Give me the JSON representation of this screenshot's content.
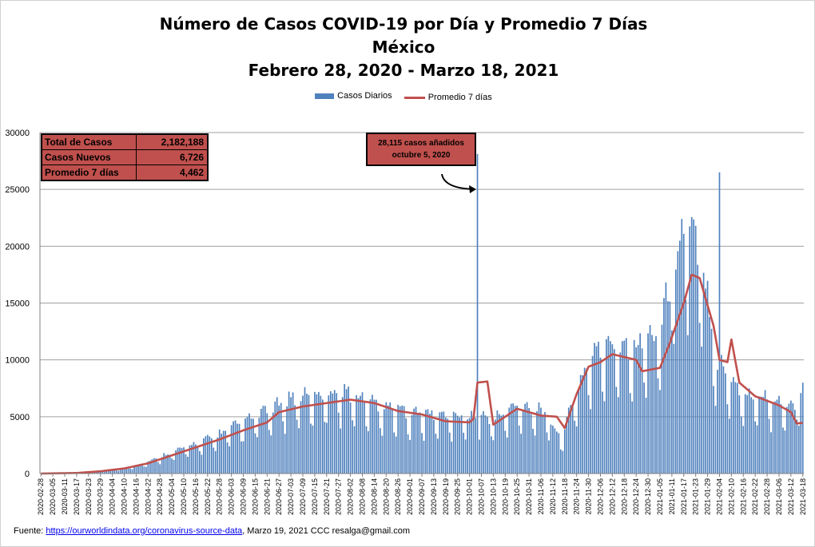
{
  "titles": {
    "line1": "Número de  Casos  COVID-19 por Día y Promedio 7 Días",
    "line2": "México",
    "line3": "Febrero 28, 2020 - Marzo 18, 2021"
  },
  "legend": {
    "bars": "Casos Diarios",
    "line": "Promedio 7 días"
  },
  "colors": {
    "bars": "#4f81bd",
    "line": "#c0504d",
    "box": "#c0504d",
    "grid": "#a0a0a0"
  },
  "stats": [
    {
      "label": "Total de Casos",
      "value": "2,182,188"
    },
    {
      "label": "Casos Nuevos",
      "value": "6,726"
    },
    {
      "label": "Promedio 7 días",
      "value": "4,462"
    }
  ],
  "annotation": {
    "line1": "28,115 casos  añadidos",
    "line2": "octubre  5, 2020"
  },
  "footer": {
    "prefix": "Fuente:",
    "link": "https://ourworldindata.org/coronavirus-source-data",
    "suffix": ",  Marzo 19, 2021    CCC   resalga@gmail.com"
  },
  "chart_data": {
    "type": "bar",
    "title": "Número de  Casos  COVID-19 por Día y Promedio 7 Días",
    "x_start": "2020-02-28",
    "x_end": "2021-03-18",
    "ylim": [
      0,
      30000
    ],
    "y_ticks": [
      0,
      5000,
      10000,
      15000,
      20000,
      25000,
      30000
    ],
    "x_tick_labels": [
      "2020-02-28",
      "2020-03-05",
      "2020-03-11",
      "2020-03-17",
      "2020-03-23",
      "2020-03-29",
      "2020-04-04",
      "2020-04-10",
      "2020-04-16",
      "2020-04-22",
      "2020-04-28",
      "2020-05-04",
      "2020-05-10",
      "2020-05-16",
      "2020-05-22",
      "2020-05-28",
      "2020-06-03",
      "2020-06-09",
      "2020-06-15",
      "2020-06-21",
      "2020-06-27",
      "2020-07-03",
      "2020-07-09",
      "2020-07-15",
      "2020-07-21",
      "2020-07-27",
      "2020-08-02",
      "2020-08-08",
      "2020-08-14",
      "2020-08-20",
      "2020-08-26",
      "2020-09-01",
      "2020-09-07",
      "2020-09-13",
      "2020-09-19",
      "2020-09-25",
      "2020-10-01",
      "2020-10-07",
      "2020-10-13",
      "2020-10-19",
      "2020-10-25",
      "2020-10-31",
      "2020-11-06",
      "2020-11-12",
      "2020-11-18",
      "2020-11-24",
      "2020-11-30",
      "2020-12-06",
      "2020-12-12",
      "2020-12-18",
      "2020-12-24",
      "2020-12-30",
      "2021-01-05",
      "2021-01-11",
      "2021-01-17",
      "2021-01-23",
      "2021-01-29",
      "2021-02-04",
      "2021-02-10",
      "2021-02-16",
      "2021-02-22",
      "2021-02-28",
      "2021-03-06",
      "2021-03-12",
      "2021-03-18"
    ],
    "grid": true,
    "legend_position": "top",
    "series": [
      {
        "name": "Casos Diarios",
        "type": "bar",
        "anchor_dates": [
          "2020-02-28",
          "2020-03-17",
          "2020-03-29",
          "2020-04-10",
          "2020-04-22",
          "2020-05-04",
          "2020-05-16",
          "2020-05-28",
          "2020-06-09",
          "2020-06-21",
          "2020-07-03",
          "2020-07-15",
          "2020-07-27",
          "2020-08-08",
          "2020-08-20",
          "2020-09-01",
          "2020-09-13",
          "2020-09-25",
          "2020-10-04",
          "2020-10-05",
          "2020-10-06",
          "2020-10-13",
          "2020-10-25",
          "2020-11-06",
          "2020-11-16",
          "2020-11-24",
          "2020-11-30",
          "2020-12-12",
          "2020-12-24",
          "2021-01-05",
          "2021-01-11",
          "2021-01-17",
          "2021-01-23",
          "2021-01-29",
          "2021-02-03",
          "2021-02-04",
          "2021-02-05",
          "2021-02-10",
          "2021-02-16",
          "2021-02-28",
          "2021-03-12",
          "2021-03-18"
        ],
        "anchor_values": [
          0,
          40,
          250,
          450,
          1000,
          1800,
          2500,
          3300,
          4300,
          5200,
          6300,
          6500,
          7000,
          6200,
          5600,
          5100,
          4900,
          4800,
          4700,
          28115,
          4800,
          4500,
          5700,
          5400,
          3000,
          6800,
          9500,
          11000,
          10500,
          12000,
          16500,
          21000,
          19000,
          15000,
          9000,
          26500,
          9000,
          8000,
          6600,
          6400,
          5500,
          6726
        ]
      },
      {
        "name": "Promedio 7 días",
        "type": "line",
        "anchor_dates": [
          "2020-02-28",
          "2020-03-17",
          "2020-03-29",
          "2020-04-10",
          "2020-04-22",
          "2020-05-04",
          "2020-05-16",
          "2020-05-28",
          "2020-06-09",
          "2020-06-21",
          "2020-06-27",
          "2020-07-09",
          "2020-07-21",
          "2020-08-02",
          "2020-08-14",
          "2020-08-26",
          "2020-09-07",
          "2020-09-19",
          "2020-10-01",
          "2020-10-03",
          "2020-10-05",
          "2020-10-10",
          "2020-10-13",
          "2020-10-25",
          "2020-11-06",
          "2020-11-14",
          "2020-11-18",
          "2020-11-24",
          "2020-11-30",
          "2020-12-06",
          "2020-12-12",
          "2020-12-24",
          "2020-12-27",
          "2021-01-05",
          "2021-01-10",
          "2021-01-17",
          "2021-01-21",
          "2021-01-25",
          "2021-02-01",
          "2021-02-04",
          "2021-02-08",
          "2021-02-10",
          "2021-02-14",
          "2021-02-22",
          "2021-03-06",
          "2021-03-12",
          "2021-03-15",
          "2021-03-18"
        ],
        "anchor_values": [
          0,
          50,
          200,
          450,
          900,
          1600,
          2300,
          3000,
          3800,
          4500,
          5400,
          5900,
          6200,
          6500,
          6200,
          5500,
          5200,
          4600,
          4500,
          4800,
          8000,
          8100,
          4300,
          5700,
          5100,
          5000,
          4000,
          7000,
          9400,
          9800,
          10500,
          10000,
          9000,
          9300,
          11500,
          15000,
          17500,
          17200,
          13000,
          10000,
          9800,
          11800,
          8000,
          6800,
          6000,
          5400,
          4400,
          4462
        ]
      }
    ]
  }
}
